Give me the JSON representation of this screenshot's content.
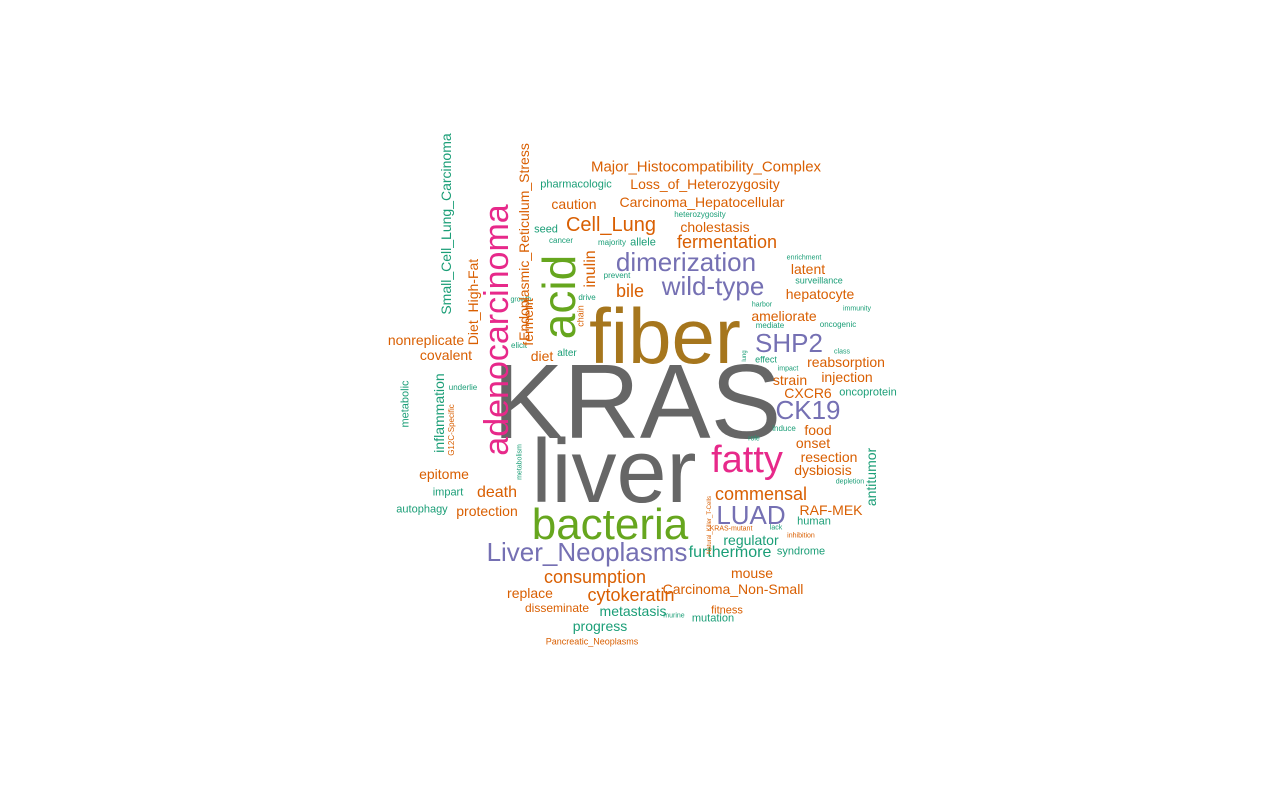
{
  "palette": {
    "gray": "#666666",
    "gold": "#a6761d",
    "green": "#66a61e",
    "pink": "#e7298a",
    "purple": "#7570b3",
    "orange": "#d95f02",
    "teal": "#1b9e77"
  },
  "words": [
    {
      "text": "KRAS",
      "color": "gray"
    },
    {
      "text": "liver",
      "color": "gray"
    },
    {
      "text": "fiber",
      "color": "gold"
    },
    {
      "text": "bacteria",
      "color": "green"
    },
    {
      "text": "acid",
      "color": "green"
    },
    {
      "text": "adenocarcinoma",
      "color": "pink"
    },
    {
      "text": "fatty",
      "color": "pink"
    },
    {
      "text": "dimerization",
      "color": "purple"
    },
    {
      "text": "wild-type",
      "color": "purple"
    },
    {
      "text": "SHP2",
      "color": "purple"
    },
    {
      "text": "CK19",
      "color": "purple"
    },
    {
      "text": "LUAD",
      "color": "purple"
    },
    {
      "text": "Liver_Neoplasms",
      "color": "purple"
    },
    {
      "text": "Major_Histocompatibility_Complex",
      "color": "orange"
    },
    {
      "text": "pharmacologic",
      "color": "teal"
    },
    {
      "text": "Loss_of_Heterozygosity",
      "color": "orange"
    },
    {
      "text": "caution",
      "color": "orange"
    },
    {
      "text": "Carcinoma_Hepatocellular",
      "color": "orange"
    },
    {
      "text": "heterozygosity",
      "color": "teal"
    },
    {
      "text": "Cell_Lung",
      "color": "orange"
    },
    {
      "text": "cholestasis",
      "color": "orange"
    },
    {
      "text": "seed",
      "color": "teal"
    },
    {
      "text": "cancer",
      "color": "teal"
    },
    {
      "text": "majority",
      "color": "teal"
    },
    {
      "text": "allele",
      "color": "teal"
    },
    {
      "text": "fermentation",
      "color": "orange"
    },
    {
      "text": "enrichment",
      "color": "teal"
    },
    {
      "text": "latent",
      "color": "orange"
    },
    {
      "text": "prevent",
      "color": "teal"
    },
    {
      "text": "surveillance",
      "color": "teal"
    },
    {
      "text": "bile",
      "color": "orange"
    },
    {
      "text": "hepatocyte",
      "color": "orange"
    },
    {
      "text": "drive",
      "color": "teal"
    },
    {
      "text": "growth",
      "color": "teal"
    },
    {
      "text": "harbor",
      "color": "teal"
    },
    {
      "text": "immunity",
      "color": "teal"
    },
    {
      "text": "ameliorate",
      "color": "orange"
    },
    {
      "text": "mediate",
      "color": "teal"
    },
    {
      "text": "oncogenic",
      "color": "teal"
    },
    {
      "text": "nonreplicate",
      "color": "orange"
    },
    {
      "text": "elicit",
      "color": "teal"
    },
    {
      "text": "covalent",
      "color": "orange"
    },
    {
      "text": "diet",
      "color": "orange"
    },
    {
      "text": "alter",
      "color": "teal"
    },
    {
      "text": "lung",
      "color": "teal"
    },
    {
      "text": "class",
      "color": "teal"
    },
    {
      "text": "effect",
      "color": "teal"
    },
    {
      "text": "reabsorption",
      "color": "orange"
    },
    {
      "text": "impact",
      "color": "teal"
    },
    {
      "text": "injection",
      "color": "orange"
    },
    {
      "text": "strain",
      "color": "orange"
    },
    {
      "text": "underlie",
      "color": "teal"
    },
    {
      "text": "CXCR6",
      "color": "orange"
    },
    {
      "text": "oncoprotein",
      "color": "teal"
    },
    {
      "text": "induce",
      "color": "teal"
    },
    {
      "text": "food",
      "color": "orange"
    },
    {
      "text": "role",
      "color": "teal"
    },
    {
      "text": "onset",
      "color": "orange"
    },
    {
      "text": "resection",
      "color": "orange"
    },
    {
      "text": "dysbiosis",
      "color": "orange"
    },
    {
      "text": "epitome",
      "color": "orange"
    },
    {
      "text": "depletion",
      "color": "teal"
    },
    {
      "text": "impart",
      "color": "teal"
    },
    {
      "text": "death",
      "color": "orange"
    },
    {
      "text": "commensal",
      "color": "orange"
    },
    {
      "text": "autophagy",
      "color": "teal"
    },
    {
      "text": "protection",
      "color": "orange"
    },
    {
      "text": "RAF-MEK",
      "color": "orange"
    },
    {
      "text": "human",
      "color": "teal"
    },
    {
      "text": "KRAS-mutant",
      "color": "orange"
    },
    {
      "text": "lack",
      "color": "teal"
    },
    {
      "text": "regulator",
      "color": "teal"
    },
    {
      "text": "inhibition",
      "color": "orange"
    },
    {
      "text": "syndrome",
      "color": "teal"
    },
    {
      "text": "furthermore",
      "color": "teal"
    },
    {
      "text": "mouse",
      "color": "orange"
    },
    {
      "text": "consumption",
      "color": "orange"
    },
    {
      "text": "Carcinoma_Non-Small",
      "color": "orange"
    },
    {
      "text": "replace",
      "color": "orange"
    },
    {
      "text": "cytokeratin",
      "color": "orange"
    },
    {
      "text": "disseminate",
      "color": "orange"
    },
    {
      "text": "metastasis",
      "color": "teal"
    },
    {
      "text": "fitness",
      "color": "orange"
    },
    {
      "text": "murine",
      "color": "teal"
    },
    {
      "text": "mutation",
      "color": "teal"
    },
    {
      "text": "progress",
      "color": "teal"
    },
    {
      "text": "Pancreatic_Neoplasms",
      "color": "orange"
    },
    {
      "text": "Small_Cell_Lung_Carcinoma",
      "color": "teal"
    },
    {
      "text": "Endoplasmic_Reticulum_Stress",
      "color": "orange"
    },
    {
      "text": "Diet_High-Fat",
      "color": "orange"
    },
    {
      "text": "ferment",
      "color": "orange"
    },
    {
      "text": "inulin",
      "color": "orange"
    },
    {
      "text": "chain",
      "color": "orange"
    },
    {
      "text": "metabolic",
      "color": "teal"
    },
    {
      "text": "inflammation",
      "color": "teal"
    },
    {
      "text": "G12C-Specific",
      "color": "orange"
    },
    {
      "text": "metabolism",
      "color": "teal"
    },
    {
      "text": "antitumor",
      "color": "teal"
    },
    {
      "text": "Natural_Killer_T-Cells",
      "color": "orange"
    },
    {
      "text": "inhibitor",
      "color": "teal"
    }
  ]
}
